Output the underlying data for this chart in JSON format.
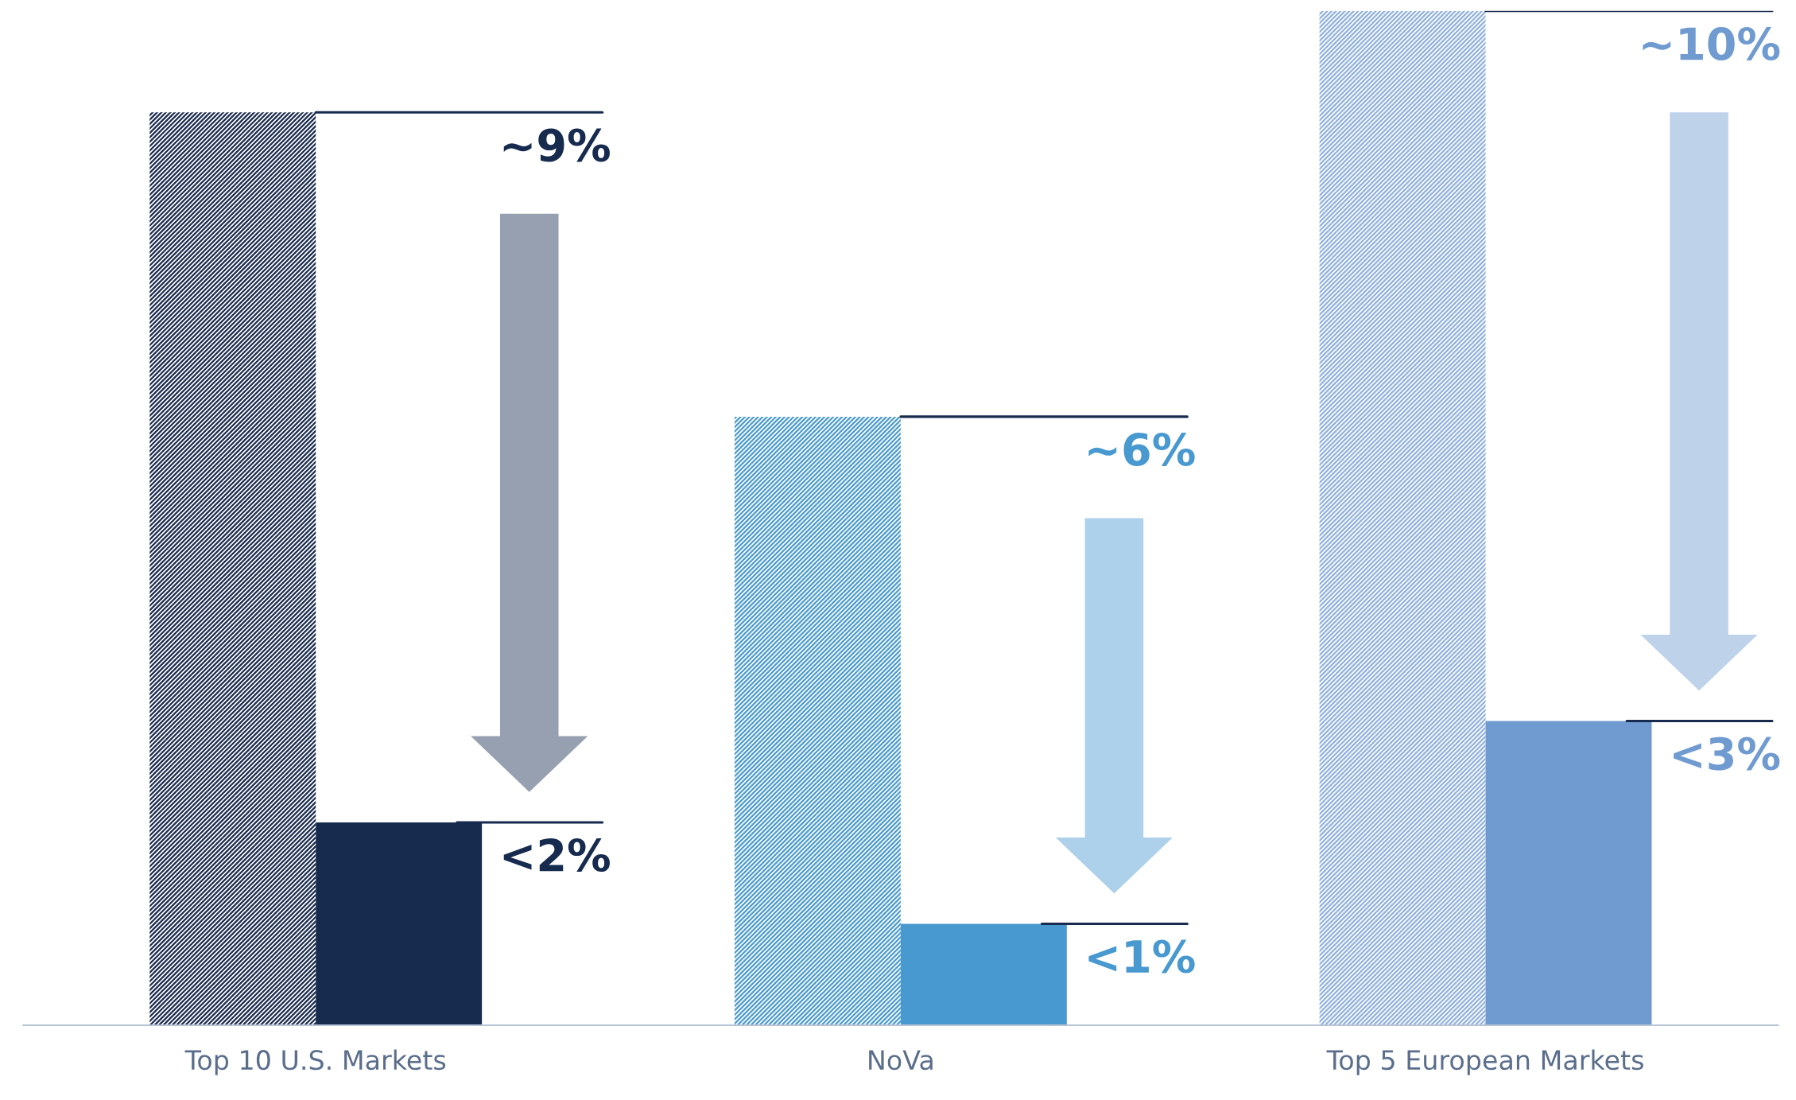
{
  "chart_data": {
    "type": "bar",
    "categories": [
      "Top 10 U.S. Markets",
      "NoVa",
      "Top 5 European Markets"
    ],
    "series": [
      {
        "colors": [
          "#1a2b4e",
          "#4a9ad0",
          "#8fb0df"
        ],
        "values": [
          9,
          6,
          10
        ],
        "value_labels": [
          "~9%",
          "~6%",
          "~10%"
        ]
      },
      {
        "colors": [
          "#172b4f",
          "#4899d0",
          "#6f9bd0"
        ],
        "values": [
          2,
          1,
          3
        ],
        "value_labels": [
          "<2%",
          "<1%",
          "<3%"
        ]
      }
    ],
    "grid": false,
    "legend": false
  }
}
